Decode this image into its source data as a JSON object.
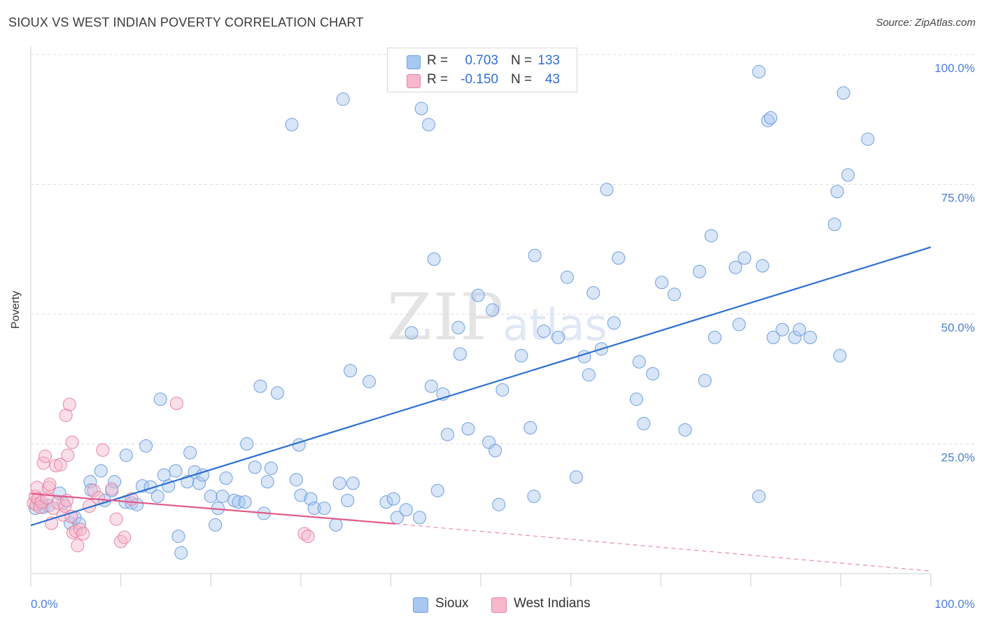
{
  "header": {
    "title": "SIOUX VS WEST INDIAN POVERTY CORRELATION CHART",
    "source": "Source: ZipAtlas.com"
  },
  "watermark": {
    "zip": "ZIP",
    "atlas": "atlas"
  },
  "legend": {
    "rows": [
      {
        "r_label": "R =",
        "r_value": "0.703",
        "n_label": "N =",
        "n_value": "133",
        "color": "#a9c8f0",
        "stroke": "#6f9ee0"
      },
      {
        "r_label": "R =",
        "r_value": "-0.150",
        "n_label": "N =",
        "n_value": "43",
        "color": "#f7b8cc",
        "stroke": "#e882a2"
      }
    ]
  },
  "bottom_legend": {
    "sioux": "Sioux",
    "west_indians": "West Indians"
  },
  "colors": {
    "sioux_fill": "#a9c8f0",
    "sioux_stroke": "#6f9ee0",
    "sioux_line": "#2d6fd2",
    "wi_fill": "#f7b8cc",
    "wi_stroke": "#e882a2",
    "wi_line": "#e05a8a",
    "grid": "#dcdcdc",
    "tick_text": "#4a7fd4"
  },
  "chart_data": {
    "type": "scatter",
    "title": "SIOUX VS WEST INDIAN POVERTY CORRELATION CHART",
    "xlabel": "",
    "ylabel": "Poverty",
    "xlim": [
      0,
      100
    ],
    "ylim": [
      0,
      100
    ],
    "x_tick_labels": [
      "0.0%",
      "100.0%"
    ],
    "y_tick_labels": [
      "25.0%",
      "50.0%",
      "75.0%",
      "100.0%"
    ],
    "y_ticks": [
      25,
      50,
      75,
      100
    ],
    "series": [
      {
        "name": "Sioux",
        "trend": {
          "x": [
            0,
            100
          ],
          "y": [
            9.3,
            62.9
          ]
        },
        "points": [
          [
            0.5,
            12.6
          ],
          [
            1.0,
            13.5
          ],
          [
            1.4,
            12.8
          ],
          [
            2.0,
            13.1
          ],
          [
            3.2,
            15.5
          ],
          [
            3.6,
            13.6
          ],
          [
            4.4,
            9.7
          ],
          [
            4.9,
            10.8
          ],
          [
            5.4,
            9.6
          ],
          [
            6.6,
            17.7
          ],
          [
            6.7,
            16.1
          ],
          [
            7.8,
            19.8
          ],
          [
            8.2,
            14.1
          ],
          [
            9.0,
            16.0
          ],
          [
            9.3,
            17.7
          ],
          [
            10.5,
            13.8
          ],
          [
            10.6,
            22.8
          ],
          [
            11.2,
            13.6
          ],
          [
            11.8,
            13.3
          ],
          [
            12.4,
            16.9
          ],
          [
            12.8,
            24.6
          ],
          [
            13.3,
            16.7
          ],
          [
            14.1,
            14.9
          ],
          [
            14.4,
            33.6
          ],
          [
            14.8,
            19.0
          ],
          [
            15.3,
            16.9
          ],
          [
            16.1,
            19.8
          ],
          [
            16.4,
            7.2
          ],
          [
            16.7,
            4.0
          ],
          [
            17.4,
            17.7
          ],
          [
            17.7,
            23.3
          ],
          [
            18.2,
            19.6
          ],
          [
            18.7,
            17.4
          ],
          [
            19.1,
            19.0
          ],
          [
            20.0,
            14.9
          ],
          [
            20.5,
            9.4
          ],
          [
            20.8,
            12.6
          ],
          [
            21.3,
            14.9
          ],
          [
            21.7,
            18.4
          ],
          [
            22.6,
            14.1
          ],
          [
            23.1,
            13.8
          ],
          [
            23.8,
            13.8
          ],
          [
            24.0,
            25.0
          ],
          [
            24.9,
            20.5
          ],
          [
            25.5,
            36.1
          ],
          [
            25.9,
            11.6
          ],
          [
            26.3,
            17.7
          ],
          [
            26.7,
            20.3
          ],
          [
            27.4,
            34.8
          ],
          [
            29.0,
            86.5
          ],
          [
            29.5,
            18.1
          ],
          [
            29.8,
            24.8
          ],
          [
            30.0,
            15.1
          ],
          [
            31.1,
            14.4
          ],
          [
            31.5,
            12.6
          ],
          [
            32.6,
            12.6
          ],
          [
            33.9,
            9.4
          ],
          [
            34.3,
            17.4
          ],
          [
            34.7,
            91.4
          ],
          [
            35.2,
            14.1
          ],
          [
            35.5,
            39.1
          ],
          [
            35.8,
            17.4
          ],
          [
            37.6,
            37.0
          ],
          [
            39.5,
            13.8
          ],
          [
            40.3,
            14.4
          ],
          [
            40.7,
            10.8
          ],
          [
            41.7,
            12.3
          ],
          [
            42.3,
            46.4
          ],
          [
            43.2,
            10.8
          ],
          [
            43.4,
            89.6
          ],
          [
            44.2,
            86.5
          ],
          [
            44.5,
            36.1
          ],
          [
            44.8,
            60.6
          ],
          [
            45.2,
            16.0
          ],
          [
            45.8,
            34.6
          ],
          [
            46.3,
            26.8
          ],
          [
            47.5,
            47.4
          ],
          [
            47.7,
            42.3
          ],
          [
            48.6,
            27.9
          ],
          [
            49.7,
            53.6
          ],
          [
            50.9,
            25.3
          ],
          [
            51.3,
            50.8
          ],
          [
            51.6,
            23.7
          ],
          [
            52.0,
            13.3
          ],
          [
            52.4,
            35.4
          ],
          [
            54.5,
            42.0
          ],
          [
            55.5,
            28.1
          ],
          [
            55.9,
            14.9
          ],
          [
            56.0,
            61.3
          ],
          [
            57.0,
            46.7
          ],
          [
            58.6,
            45.5
          ],
          [
            59.6,
            57.1
          ],
          [
            60.6,
            18.6
          ],
          [
            61.5,
            41.8
          ],
          [
            62.0,
            38.3
          ],
          [
            62.5,
            54.1
          ],
          [
            63.4,
            43.3
          ],
          [
            64.0,
            74.0
          ],
          [
            64.8,
            48.3
          ],
          [
            65.3,
            60.8
          ],
          [
            67.3,
            33.6
          ],
          [
            67.6,
            40.8
          ],
          [
            68.1,
            28.9
          ],
          [
            69.1,
            38.5
          ],
          [
            70.1,
            56.1
          ],
          [
            71.5,
            53.8
          ],
          [
            72.7,
            27.7
          ],
          [
            74.3,
            58.2
          ],
          [
            74.9,
            37.2
          ],
          [
            75.6,
            65.1
          ],
          [
            76.0,
            45.5
          ],
          [
            78.3,
            59.0
          ],
          [
            78.7,
            48.0
          ],
          [
            79.3,
            60.8
          ],
          [
            80.9,
            14.9
          ],
          [
            80.9,
            96.7
          ],
          [
            81.3,
            59.3
          ],
          [
            81.9,
            87.3
          ],
          [
            82.2,
            87.8
          ],
          [
            82.5,
            45.5
          ],
          [
            83.5,
            47.0
          ],
          [
            84.9,
            45.5
          ],
          [
            85.4,
            47.0
          ],
          [
            86.6,
            45.5
          ],
          [
            89.3,
            67.3
          ],
          [
            89.6,
            73.6
          ],
          [
            89.9,
            42.0
          ],
          [
            90.3,
            92.6
          ],
          [
            90.8,
            76.8
          ],
          [
            93.0,
            83.7
          ]
        ]
      },
      {
        "name": "West Indians",
        "trend": {
          "x": [
            0,
            40.5
          ],
          "y": [
            15.4,
            9.6
          ]
        },
        "trend_dashed": {
          "x": [
            40.5,
            100
          ],
          "y": [
            9.6,
            0.5
          ]
        },
        "points": [
          [
            0.3,
            13.6
          ],
          [
            0.5,
            14.9
          ],
          [
            0.6,
            13.3
          ],
          [
            0.7,
            16.6
          ],
          [
            0.8,
            14.4
          ],
          [
            1.0,
            12.8
          ],
          [
            1.2,
            13.8
          ],
          [
            1.4,
            21.3
          ],
          [
            1.6,
            22.6
          ],
          [
            1.8,
            14.6
          ],
          [
            2.0,
            16.6
          ],
          [
            2.1,
            17.2
          ],
          [
            2.3,
            9.7
          ],
          [
            2.5,
            12.6
          ],
          [
            2.8,
            20.8
          ],
          [
            3.0,
            13.6
          ],
          [
            3.3,
            21.0
          ],
          [
            3.6,
            11.3
          ],
          [
            3.8,
            13.0
          ],
          [
            3.9,
            30.5
          ],
          [
            4.0,
            14.1
          ],
          [
            4.1,
            22.8
          ],
          [
            4.3,
            32.6
          ],
          [
            4.5,
            11.0
          ],
          [
            4.6,
            25.3
          ],
          [
            4.7,
            7.9
          ],
          [
            5.0,
            8.2
          ],
          [
            5.2,
            5.4
          ],
          [
            5.5,
            8.5
          ],
          [
            5.8,
            7.7
          ],
          [
            6.5,
            13.0
          ],
          [
            7.0,
            16.0
          ],
          [
            7.5,
            14.6
          ],
          [
            8.0,
            23.8
          ],
          [
            9.0,
            16.3
          ],
          [
            9.5,
            10.5
          ],
          [
            10.0,
            6.2
          ],
          [
            10.4,
            7.0
          ],
          [
            11.2,
            14.4
          ],
          [
            16.2,
            32.8
          ],
          [
            30.4,
            7.7
          ],
          [
            30.8,
            7.2
          ]
        ]
      }
    ]
  }
}
